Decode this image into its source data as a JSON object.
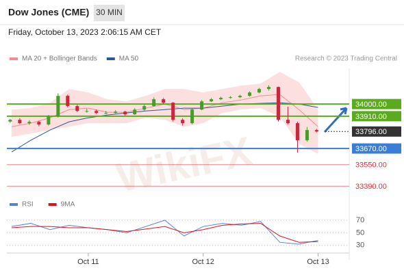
{
  "header": {
    "title": "Dow Jones (CME)",
    "timeframe": "30 MIN",
    "datetime": "Friday, October 13, 2023 2:06:15 AM CET",
    "legend": [
      {
        "name": "MA 20 + Bollinger Bands",
        "color": "#f28b8b"
      },
      {
        "name": "MA 50",
        "color": "#2d5596"
      }
    ],
    "credit": "Research © 2023 Trading Central",
    "watermark": "WikiFX"
  },
  "chart_data": [
    {
      "type": "candlestick",
      "up_color": "#4a9a2e",
      "down_color": "#c8283c",
      "xlim": [
        7,
        78.5
      ],
      "ylim": [
        33320,
        34265
      ],
      "x": [
        7.7,
        9.7,
        11.7,
        13.7,
        15.7,
        17.7,
        19.7,
        21.7,
        23.7,
        25.7,
        27.7,
        29.7,
        31.7,
        33.7,
        35.7,
        37.7,
        39.7,
        41.7,
        43.7,
        45.7,
        47.7,
        49.7,
        51.7,
        53.7,
        55.7,
        57.7,
        59.7,
        61.7,
        63.7,
        65.7,
        67.7,
        69.7,
        71.7
      ],
      "open": [
        33870,
        33883,
        33858,
        33868,
        33848,
        33908,
        34061,
        33985,
        33949,
        33949,
        33934,
        33934,
        33944,
        33924,
        33959,
        33985,
        34036,
        34010,
        33883,
        33858,
        33959,
        34020,
        34036,
        34046,
        34051,
        34061,
        34086,
        34112,
        34127,
        33883,
        33858,
        33731,
        33807
      ],
      "high": [
        33890,
        33895,
        33880,
        33875,
        33920,
        34080,
        34070,
        33995,
        33965,
        33960,
        33950,
        33955,
        33950,
        33970,
        33995,
        34050,
        34045,
        34015,
        33895,
        33970,
        34030,
        34045,
        34055,
        34060,
        34070,
        34095,
        34120,
        34140,
        34130,
        33980,
        33870,
        33830,
        33815
      ],
      "low": [
        33860,
        33850,
        33845,
        33835,
        33840,
        33900,
        33975,
        33940,
        33935,
        33925,
        33925,
        33930,
        33915,
        33920,
        33950,
        33980,
        34000,
        33870,
        33840,
        33850,
        33955,
        34015,
        34030,
        34040,
        34045,
        34055,
        34080,
        34100,
        33870,
        33850,
        33640,
        33720,
        33790
      ],
      "close": [
        33883,
        33858,
        33868,
        33848,
        33908,
        34061,
        33985,
        33949,
        33949,
        33934,
        33934,
        33944,
        33924,
        33959,
        33985,
        34036,
        34010,
        33883,
        33858,
        33959,
        34020,
        34036,
        34046,
        34051,
        34061,
        34086,
        34112,
        34127,
        33883,
        33858,
        33731,
        33807,
        33796
      ],
      "indicator_x": [
        8,
        12,
        16,
        20,
        24,
        28,
        32,
        36,
        40,
        44,
        48,
        52,
        56,
        60,
        64,
        68,
        72
      ],
      "bb_upper": [
        33959,
        33970,
        34010,
        34112,
        34086,
        34036,
        34020,
        34061,
        34112,
        34112,
        34086,
        34112,
        34137,
        34152,
        34239,
        34163,
        33959
      ],
      "bb_lower": [
        33756,
        33781,
        33807,
        33832,
        33858,
        33858,
        33858,
        33898,
        33883,
        33832,
        33858,
        33934,
        33959,
        33970,
        33908,
        33705,
        33629
      ],
      "ma20": [
        33832,
        33858,
        33898,
        33959,
        33970,
        33939,
        33939,
        33970,
        34000,
        33959,
        33970,
        34010,
        34031,
        34061,
        34071,
        33959,
        33832
      ],
      "ma50": [
        33644,
        33731,
        33807,
        33868,
        33898,
        33919,
        33934,
        33949,
        33959,
        33970,
        33970,
        33985,
        34000,
        34005,
        34010,
        34000,
        33975
      ],
      "levels": [
        {
          "value": 34000,
          "label": "34000.00",
          "kind": "resistance",
          "color": "#5aab1e"
        },
        {
          "value": 33910,
          "label": "33910.00",
          "kind": "resistance",
          "color": "#5aab1e"
        },
        {
          "value": 33796,
          "label": "33796.00",
          "kind": "current",
          "color": "#333333"
        },
        {
          "value": 33670,
          "label": "33670.00",
          "kind": "support",
          "color": "#3a7fd5"
        },
        {
          "value": 33550,
          "label": "33550.00",
          "kind": "minor",
          "color": "#e0303a"
        },
        {
          "value": 33390,
          "label": "33390.00",
          "kind": "minor",
          "color": "#e0303a"
        }
      ]
    },
    {
      "type": "line",
      "xlim": [
        7,
        78.5
      ],
      "ylim": [
        20,
        83
      ],
      "yticks": [
        30,
        50,
        70
      ],
      "x": [
        8,
        12,
        16,
        20,
        24,
        28,
        32,
        36,
        40,
        44,
        48,
        52,
        56,
        60,
        64,
        68,
        72
      ],
      "xticks": [
        {
          "value": 24,
          "label": "Oct 11"
        },
        {
          "value": 48,
          "label": "Oct 12"
        },
        {
          "value": 72,
          "label": "Oct 13"
        }
      ],
      "series": [
        {
          "name": "RSI",
          "color": "#5b7fd6",
          "values": [
            60,
            65,
            55,
            62,
            58,
            55,
            50,
            60,
            70,
            45,
            60,
            65,
            62,
            68,
            35,
            32,
            38
          ]
        },
        {
          "name": "9MA",
          "color": "#d8141c",
          "values": [
            58,
            60,
            60,
            58,
            58,
            55,
            52,
            56,
            60,
            50,
            55,
            62,
            64,
            65,
            45,
            35,
            36
          ]
        }
      ]
    }
  ]
}
